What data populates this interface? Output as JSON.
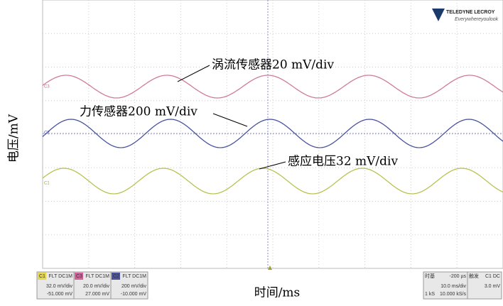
{
  "logo": {
    "brand": "TELEDYNE LECROY",
    "tagline": "Everywhereyoulook"
  },
  "axes": {
    "y_label": "电压/mV",
    "x_label": "时间/ms"
  },
  "annotations": [
    "涡流传感器20 mV/div",
    "力传感器200 mV/div",
    "感应电压32 mV/div"
  ],
  "markers": [
    "C3",
    "C2",
    "C1"
  ],
  "channels": [
    {
      "id": "C1",
      "coupling": "FLT DC1M",
      "scale": "32.0 mV/div",
      "offset": "-51.000 mV"
    },
    {
      "id": "C3",
      "coupling": "FLT DC1M",
      "scale": "20.0 mV/div",
      "offset": "27.000 mV"
    },
    {
      "id": "C2",
      "coupling": "FLT DC1M",
      "scale": "200 mV/div",
      "offset": "-10.000 mV"
    }
  ],
  "timebase": {
    "title": "时基",
    "delay": "-200 µs",
    "scale": "10.0 ms/div",
    "samples": "1 kS",
    "rate": "10.000 kS/s"
  },
  "trigger": {
    "title": "触发",
    "source": "C1 DC",
    "level": "3.0 mV"
  }
}
